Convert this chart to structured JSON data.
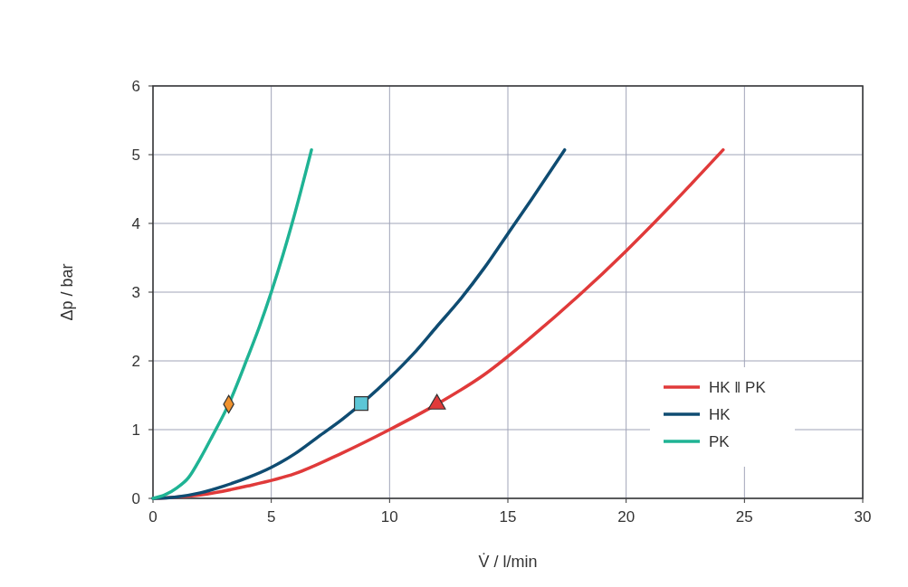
{
  "chart_data": {
    "type": "line",
    "xlabel": "V̇ / l/min",
    "ylabel": "Δp / bar",
    "xlim": [
      0,
      30
    ],
    "ylim": [
      0,
      6
    ],
    "xticks": [
      0,
      5,
      10,
      15,
      20,
      25,
      30
    ],
    "yticks": [
      0,
      1,
      2,
      3,
      4,
      5,
      6
    ],
    "grid": true,
    "legend": "bottom right",
    "line_style": "solid",
    "series": [
      {
        "name": "HK ‖ PK",
        "color": "#e03a3a",
        "marker": "none",
        "x": [
          0,
          2,
          4,
          6,
          8,
          10,
          12,
          14,
          16,
          18,
          20,
          22,
          24.1
        ],
        "values": [
          0,
          0.05,
          0.18,
          0.36,
          0.66,
          1.0,
          1.37,
          1.8,
          2.35,
          2.95,
          3.6,
          4.3,
          5.07
        ]
      },
      {
        "name": "HK",
        "color": "#0f4c72",
        "marker": "none",
        "x": [
          0,
          1,
          2,
          3,
          4,
          5,
          6,
          7,
          8,
          10,
          11,
          12,
          13,
          14,
          15,
          16,
          17.4
        ],
        "values": [
          0,
          0.02,
          0.08,
          0.18,
          0.3,
          0.45,
          0.65,
          0.9,
          1.15,
          1.75,
          2.1,
          2.5,
          2.9,
          3.35,
          3.85,
          4.35,
          5.07
        ]
      },
      {
        "name": "PK",
        "color": "#1fb394",
        "marker": "none",
        "x": [
          0,
          0.5,
          1,
          1.5,
          2,
          2.5,
          3.2,
          4,
          4.5,
          5,
          5.5,
          6,
          6.7
        ],
        "values": [
          0,
          0.05,
          0.15,
          0.3,
          0.58,
          0.9,
          1.37,
          2.05,
          2.5,
          3.0,
          3.55,
          4.15,
          5.07
        ]
      },
      {
        "type": "scatter",
        "color": "#e03a3a",
        "marker": "triangle",
        "x": [
          12
        ],
        "values": [
          1.37
        ]
      },
      {
        "type": "scatter",
        "color": "#5cc6d6",
        "marker": "square",
        "x": [
          8.8
        ],
        "values": [
          1.38
        ]
      },
      {
        "type": "scatter",
        "color": "#f0922e",
        "marker": "diamond",
        "x": [
          3.2
        ],
        "values": [
          1.37
        ]
      }
    ]
  }
}
